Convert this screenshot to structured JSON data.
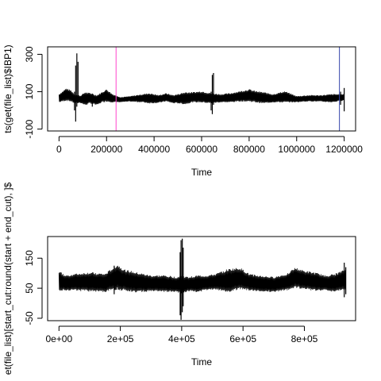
{
  "chart_data": [
    {
      "type": "line",
      "title": "",
      "xlabel": "Time",
      "ylabel": "ts(get(file_list)$IBP1)",
      "xlim": [
        -48000,
        1248000
      ],
      "ylim": [
        -110,
        340
      ],
      "x_ticks": [
        0,
        200000,
        400000,
        600000,
        800000,
        1000000,
        1200000
      ],
      "x_tick_labels": [
        "0",
        "200000",
        "400000",
        "600000",
        "800000",
        "1000000",
        "1200000"
      ],
      "y_ticks": [
        -100,
        100,
        300
      ],
      "y_tick_labels": [
        "-100",
        "100",
        "300"
      ],
      "grid": false,
      "legend": "none",
      "series_color": "#000000",
      "band": [
        [
          0,
          45,
          85
        ],
        [
          30000,
          55,
          115
        ],
        [
          50000,
          50,
          105
        ],
        [
          65000,
          40,
          85
        ],
        [
          90000,
          42,
          78
        ],
        [
          110000,
          30,
          95
        ],
        [
          130000,
          40,
          90
        ],
        [
          160000,
          30,
          80
        ],
        [
          180000,
          45,
          95
        ],
        [
          200000,
          50,
          110
        ],
        [
          225000,
          45,
          85
        ],
        [
          260000,
          45,
          70
        ],
        [
          300000,
          48,
          75
        ],
        [
          350000,
          45,
          85
        ],
        [
          380000,
          40,
          90
        ],
        [
          420000,
          42,
          80
        ],
        [
          450000,
          50,
          90
        ],
        [
          480000,
          40,
          80
        ],
        [
          500000,
          40,
          85
        ],
        [
          530000,
          35,
          95
        ],
        [
          560000,
          45,
          95
        ],
        [
          600000,
          45,
          100
        ],
        [
          640000,
          40,
          90
        ],
        [
          680000,
          45,
          85
        ],
        [
          720000,
          45,
          90
        ],
        [
          760000,
          50,
          100
        ],
        [
          800000,
          50,
          110
        ],
        [
          830000,
          45,
          100
        ],
        [
          860000,
          40,
          95
        ],
        [
          900000,
          45,
          85
        ],
        [
          950000,
          45,
          100
        ],
        [
          1000000,
          45,
          75
        ],
        [
          1050000,
          50,
          80
        ],
        [
          1100000,
          48,
          80
        ],
        [
          1150000,
          45,
          85
        ],
        [
          1200000,
          55,
          85
        ]
      ],
      "spikes": [
        [
          65000,
          0,
          100
        ],
        [
          70000,
          -60,
          240
        ],
        [
          75000,
          20,
          305
        ],
        [
          80000,
          40,
          260
        ],
        [
          140000,
          20,
          90
        ],
        [
          640000,
          0,
          100
        ],
        [
          645000,
          -20,
          190
        ],
        [
          650000,
          30,
          200
        ],
        [
          1185000,
          30,
          100
        ],
        [
          1200000,
          -5,
          120
        ]
      ],
      "vlines": [
        {
          "x": 240000,
          "color": "#ff44cc"
        },
        {
          "x": 1180000,
          "color": "#3344aa"
        }
      ]
    },
    {
      "type": "line",
      "title": "",
      "xlabel": "Time",
      "ylabel": "et(file_list)[start_cut:round(start + end_cut), ]$",
      "xlim": [
        -37000,
        967000
      ],
      "ylim": [
        -58,
        222
      ],
      "x_ticks": [
        0,
        200000,
        400000,
        600000,
        800000
      ],
      "x_tick_labels": [
        "0e+00",
        "2e+05",
        "4e+05",
        "6e+05",
        "8e+05"
      ],
      "y_ticks": [
        -50,
        50,
        150
      ],
      "y_tick_labels": [
        "-50",
        "50",
        "150"
      ],
      "grid": false,
      "legend": "none",
      "series_color": "#000000",
      "band": [
        [
          0,
          45,
          105
        ],
        [
          20000,
          45,
          90
        ],
        [
          50000,
          45,
          95
        ],
        [
          100000,
          42,
          100
        ],
        [
          150000,
          40,
          95
        ],
        [
          190000,
          50,
          125
        ],
        [
          210000,
          45,
          110
        ],
        [
          250000,
          40,
          100
        ],
        [
          300000,
          42,
          90
        ],
        [
          350000,
          40,
          90
        ],
        [
          380000,
          40,
          85
        ],
        [
          400000,
          35,
          90
        ],
        [
          420000,
          42,
          85
        ],
        [
          450000,
          40,
          90
        ],
        [
          480000,
          45,
          90
        ],
        [
          510000,
          48,
          95
        ],
        [
          550000,
          40,
          110
        ],
        [
          590000,
          50,
          115
        ],
        [
          620000,
          45,
          95
        ],
        [
          650000,
          42,
          90
        ],
        [
          700000,
          40,
          85
        ],
        [
          740000,
          45,
          95
        ],
        [
          770000,
          55,
          115
        ],
        [
          800000,
          50,
          105
        ],
        [
          830000,
          45,
          100
        ],
        [
          870000,
          45,
          90
        ],
        [
          900000,
          40,
          95
        ],
        [
          935000,
          50,
          110
        ]
      ],
      "spikes": [
        [
          395000,
          -40,
          170
        ],
        [
          398000,
          -55,
          210
        ],
        [
          402000,
          -30,
          215
        ],
        [
          405000,
          -10,
          185
        ],
        [
          180000,
          30,
          125
        ],
        [
          930000,
          20,
          135
        ],
        [
          935000,
          30,
          120
        ]
      ],
      "vlines": []
    }
  ]
}
